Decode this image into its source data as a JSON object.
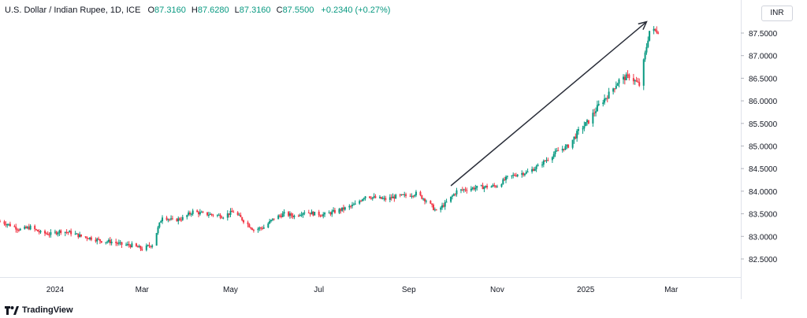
{
  "header": {
    "symbol": "U.S. Dollar / Indian Rupee, 1D, ICE",
    "open_label": "O",
    "open": "87.3160",
    "high_label": "H",
    "high": "87.6280",
    "low_label": "L",
    "low": "87.3160",
    "close_label": "C",
    "close": "87.5500",
    "change": "+0.2340 (+0.27%)"
  },
  "currency_button": "INR",
  "branding": "TradingView",
  "colors": {
    "up": "#089981",
    "down": "#f23645",
    "axis_text": "#131722",
    "arrow": "#2a2e39"
  },
  "chart_data": {
    "type": "line",
    "title": "U.S. Dollar / Indian Rupee, 1D, ICE",
    "xlabel": "",
    "ylabel": "",
    "ylim": [
      82.25,
      87.85
    ],
    "y_ticks": [
      "82.5000",
      "83.0000",
      "83.5000",
      "84.0000",
      "84.5000",
      "85.0000",
      "85.5000",
      "86.0000",
      "86.5000",
      "87.0000",
      "87.5000"
    ],
    "x_ticks": [
      {
        "label": "2024",
        "date": "2024-01-01"
      },
      {
        "label": "Mar",
        "date": "2024-03-01"
      },
      {
        "label": "May",
        "date": "2024-05-01"
      },
      {
        "label": "Jul",
        "date": "2024-07-01"
      },
      {
        "label": "Sep",
        "date": "2024-09-01"
      },
      {
        "label": "Nov",
        "date": "2024-11-01"
      },
      {
        "label": "2025",
        "date": "2025-01-01"
      },
      {
        "label": "Mar",
        "date": "2025-03-01"
      }
    ],
    "grid": false,
    "legend": "none",
    "x_range": [
      "2023-11-24",
      "2025-04-18"
    ],
    "series": [
      {
        "x": [
          "2023-11-24",
          "2023-12-01",
          "2023-12-08",
          "2023-12-15",
          "2023-12-22",
          "2023-12-29",
          "2024-01-05",
          "2024-01-12",
          "2024-01-19",
          "2024-01-26",
          "2024-02-02",
          "2024-02-09",
          "2024-02-16",
          "2024-02-23",
          "2024-03-01",
          "2024-03-08",
          "2024-03-15",
          "2024-03-22",
          "2024-03-29",
          "2024-04-05",
          "2024-04-12",
          "2024-04-19",
          "2024-04-26",
          "2024-05-03",
          "2024-05-10",
          "2024-05-17",
          "2024-05-24",
          "2024-05-31",
          "2024-06-07",
          "2024-06-14",
          "2024-06-21",
          "2024-06-28",
          "2024-07-05",
          "2024-07-12",
          "2024-07-19",
          "2024-07-26",
          "2024-08-02",
          "2024-08-09",
          "2024-08-16",
          "2024-08-23",
          "2024-08-30",
          "2024-09-06",
          "2024-09-13",
          "2024-09-20",
          "2024-09-27",
          "2024-10-04",
          "2024-10-11",
          "2024-10-18",
          "2024-10-25",
          "2024-11-01",
          "2024-11-08",
          "2024-11-15",
          "2024-11-22",
          "2024-11-29",
          "2024-12-06",
          "2024-12-13",
          "2024-12-20",
          "2024-12-27",
          "2025-01-03",
          "2025-01-10",
          "2025-01-17",
          "2025-01-24",
          "2025-01-31",
          "2025-02-07",
          "2025-02-14"
        ],
        "values": [
          83.33,
          83.25,
          83.15,
          83.2,
          83.08,
          83.05,
          83.12,
          83.08,
          83.0,
          82.96,
          82.9,
          82.88,
          82.82,
          82.8,
          82.72,
          82.82,
          83.45,
          83.35,
          83.4,
          83.55,
          83.5,
          83.48,
          83.45,
          83.55,
          83.35,
          83.15,
          83.2,
          83.4,
          83.5,
          83.45,
          83.55,
          83.5,
          83.48,
          83.55,
          83.62,
          83.7,
          83.9,
          83.85,
          83.82,
          83.88,
          83.9,
          83.95,
          83.8,
          83.55,
          83.75,
          84.0,
          84.05,
          84.08,
          84.1,
          84.12,
          84.3,
          84.38,
          84.42,
          84.55,
          84.72,
          84.9,
          85.0,
          85.32,
          85.55,
          85.9,
          86.15,
          86.45,
          86.55,
          86.35,
          87.55
        ]
      }
    ],
    "annotations": [
      {
        "type": "arrow",
        "from": {
          "x": "2024-09-30",
          "y": 84.12
        },
        "to": {
          "x": "2025-02-12",
          "y": 87.75
        }
      }
    ]
  }
}
